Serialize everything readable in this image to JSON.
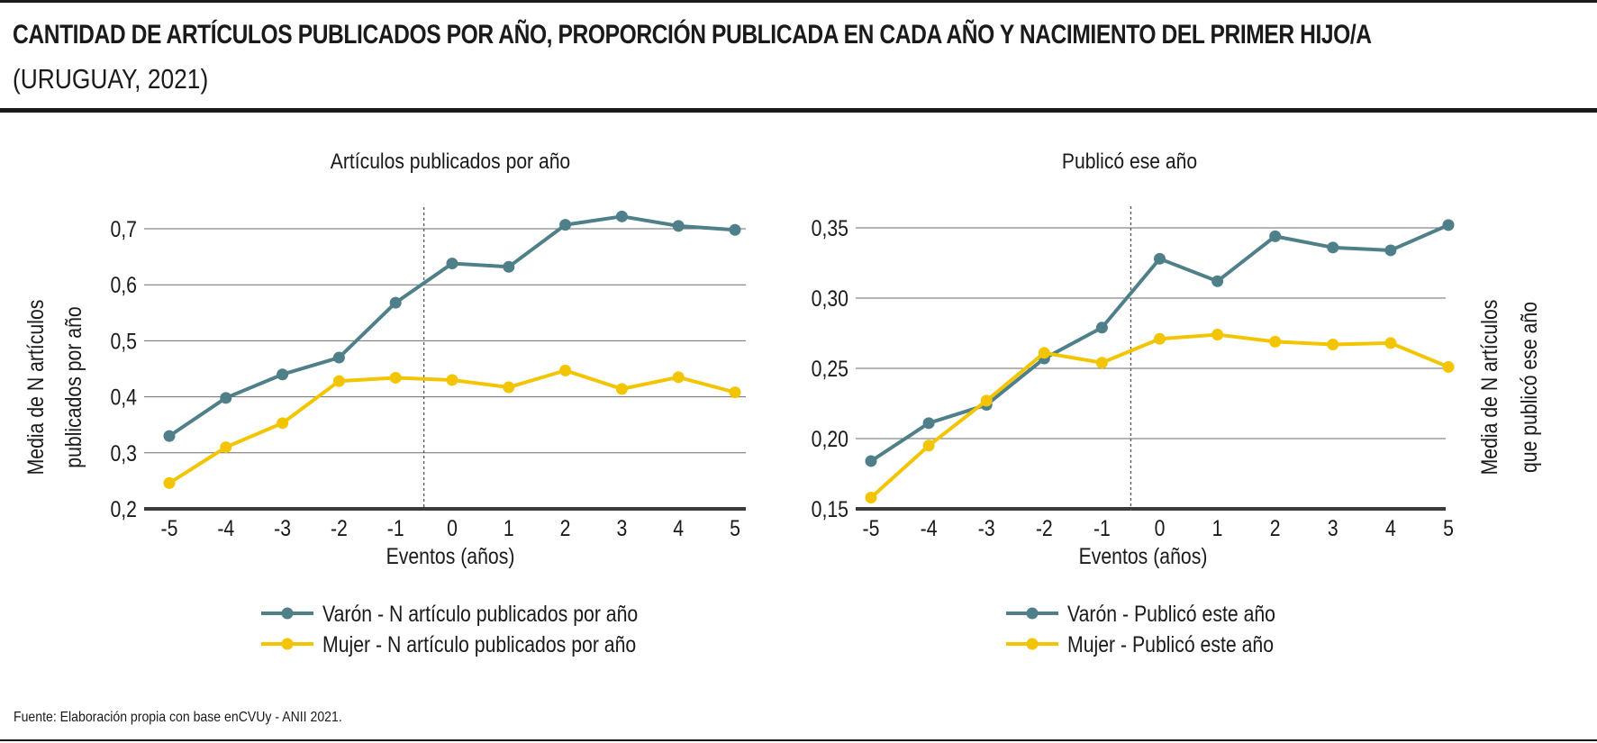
{
  "header": {
    "title": "CANTIDAD DE ARTÍCULOS PUBLICADOS POR AÑO, PROPORCIÓN PUBLICADA EN CADA AÑO Y NACIMIENTO DEL PRIMER HIJO/A",
    "subtitle": "(URUGUAY, 2021)"
  },
  "footer": {
    "source": "Fuente: Elaboración propia con base enCVUy - ANII 2021."
  },
  "colors": {
    "varon": "#4f8089",
    "mujer": "#f2c500",
    "grid": "#6b6b6b",
    "axis": "#3a3a3a",
    "event_line": "#555555"
  },
  "chart_data": [
    {
      "type": "line",
      "title": "Artículos publicados por año",
      "xlabel": "Eventos (años)",
      "ylabel": "Media de N artículos publicados por año",
      "x": [
        -5,
        -4,
        -3,
        -2,
        -1,
        0,
        1,
        2,
        3,
        4,
        5
      ],
      "ylim": [
        0.2,
        0.7
      ],
      "yticks": [
        0.2,
        0.3,
        0.4,
        0.5,
        0.6,
        0.7
      ],
      "ytick_labels": [
        "0,2",
        "0,3",
        "0,4",
        "0,5",
        "0,6",
        "0,7"
      ],
      "event_at": -0.5,
      "grid": true,
      "legend_position": "bottom",
      "series": [
        {
          "name": "Varón - N artículo publicados por año",
          "color": "#4f8089",
          "values": [
            0.33,
            0.398,
            0.44,
            0.47,
            0.568,
            0.638,
            0.632,
            0.707,
            0.722,
            0.705,
            0.698
          ]
        },
        {
          "name": "Mujer - N artículo publicados por año",
          "color": "#f2c500",
          "values": [
            0.246,
            0.31,
            0.353,
            0.428,
            0.434,
            0.43,
            0.417,
            0.447,
            0.414,
            0.435,
            0.408
          ]
        }
      ]
    },
    {
      "type": "line",
      "title": "Publicó ese año",
      "xlabel": "Eventos (años)",
      "ylabel": "Media de N artículos que publicó ese año",
      "x": [
        -5,
        -4,
        -3,
        -2,
        -1,
        0,
        1,
        2,
        3,
        4,
        5
      ],
      "ylim": [
        0.15,
        0.35
      ],
      "yticks": [
        0.15,
        0.2,
        0.25,
        0.3,
        0.35
      ],
      "ytick_labels": [
        "0,15",
        "0,20",
        "0,25",
        "0,30",
        "0,35"
      ],
      "event_at": -0.5,
      "grid": true,
      "legend_position": "bottom",
      "series": [
        {
          "name": "Varón - Publicó este año",
          "color": "#4f8089",
          "values": [
            0.184,
            0.211,
            0.224,
            0.257,
            0.279,
            0.328,
            0.312,
            0.344,
            0.336,
            0.334,
            0.352
          ]
        },
        {
          "name": "Mujer - Publicó este año",
          "color": "#f2c500",
          "values": [
            0.158,
            0.195,
            0.227,
            0.261,
            0.254,
            0.271,
            0.274,
            0.269,
            0.267,
            0.268,
            0.251
          ]
        }
      ]
    }
  ]
}
